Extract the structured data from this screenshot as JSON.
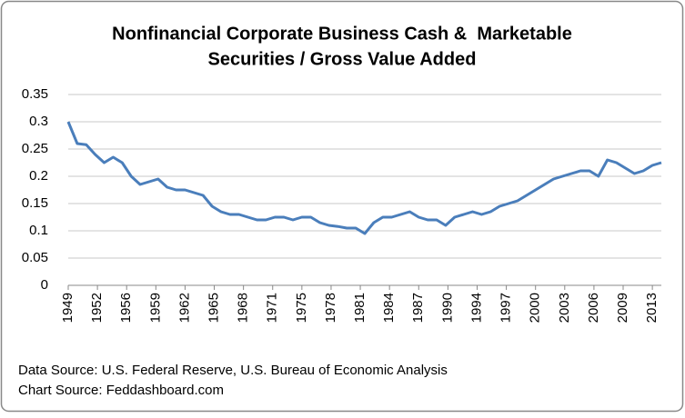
{
  "chart_data": {
    "type": "line",
    "title": [
      "Nonfinancial Corporate Business Cash &  Marketable",
      "Securities / Gross Value Added"
    ],
    "annotations": [
      "Data Source: U.S. Federal Reserve, U.S. Bureau of Economic Analysis",
      "Chart Source: Feddashboard.com"
    ],
    "x": [
      1949,
      1950,
      1951,
      1952,
      1953,
      1954,
      1955,
      1956,
      1957,
      1958,
      1959,
      1960,
      1961,
      1962,
      1963,
      1964,
      1965,
      1966,
      1967,
      1968,
      1969,
      1970,
      1971,
      1972,
      1973,
      1974,
      1975,
      1976,
      1977,
      1978,
      1979,
      1980,
      1981,
      1982,
      1983,
      1984,
      1985,
      1986,
      1987,
      1988,
      1989,
      1990,
      1991,
      1992,
      1993,
      1994,
      1995,
      1996,
      1997,
      1998,
      1999,
      2000,
      2001,
      2002,
      2003,
      2004,
      2005,
      2006,
      2007,
      2008,
      2009,
      2010,
      2011,
      2012,
      2013,
      2014,
      2015
    ],
    "series": [
      {
        "name": "Cash & Marketable Securities / Gross Value Added",
        "color": "#4a7ebb",
        "values": [
          0.3,
          0.26,
          0.258,
          0.24,
          0.225,
          0.235,
          0.225,
          0.2,
          0.185,
          0.19,
          0.195,
          0.18,
          0.175,
          0.175,
          0.17,
          0.165,
          0.145,
          0.135,
          0.13,
          0.13,
          0.125,
          0.12,
          0.12,
          0.125,
          0.125,
          0.12,
          0.125,
          0.125,
          0.115,
          0.11,
          0.108,
          0.105,
          0.105,
          0.095,
          0.115,
          0.125,
          0.125,
          0.13,
          0.135,
          0.125,
          0.12,
          0.12,
          0.11,
          0.125,
          0.13,
          0.135,
          0.13,
          0.135,
          0.145,
          0.15,
          0.155,
          0.165,
          0.175,
          0.185,
          0.195,
          0.2,
          0.205,
          0.21,
          0.21,
          0.2,
          0.23,
          0.225,
          0.215,
          0.205,
          0.21,
          0.22,
          0.225
        ]
      }
    ],
    "xlim": [
      1949,
      2015
    ],
    "xticks": [
      {
        "value": 1949,
        "label": "1949"
      },
      {
        "value": 1952.25,
        "label": "1952"
      },
      {
        "value": 1955.5,
        "label": "1956"
      },
      {
        "value": 1958.75,
        "label": "1959"
      },
      {
        "value": 1962,
        "label": "1962"
      },
      {
        "value": 1965.25,
        "label": "1965"
      },
      {
        "value": 1968.5,
        "label": "1968"
      },
      {
        "value": 1971.75,
        "label": "1971"
      },
      {
        "value": 1975,
        "label": "1975"
      },
      {
        "value": 1978.25,
        "label": "1978"
      },
      {
        "value": 1981.5,
        "label": "1981"
      },
      {
        "value": 1984.75,
        "label": "1984"
      },
      {
        "value": 1988,
        "label": "1987"
      },
      {
        "value": 1991.25,
        "label": "1990"
      },
      {
        "value": 1994.5,
        "label": "1994"
      },
      {
        "value": 1997.75,
        "label": "1997"
      },
      {
        "value": 2001,
        "label": "2000"
      },
      {
        "value": 2004.25,
        "label": "2003"
      },
      {
        "value": 2007.5,
        "label": "2006"
      },
      {
        "value": 2010.75,
        "label": "2009"
      },
      {
        "value": 2014,
        "label": "2013"
      }
    ],
    "ylim": [
      0,
      0.35
    ],
    "yticks": [
      0,
      0.05,
      0.1,
      0.15,
      0.2,
      0.25,
      0.3,
      0.35
    ],
    "grid": true
  }
}
